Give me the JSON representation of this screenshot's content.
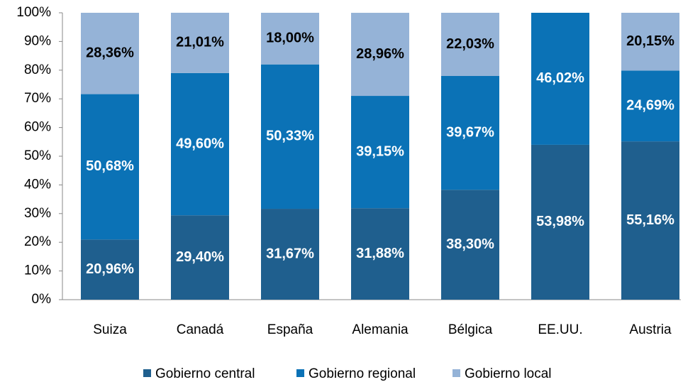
{
  "chart_data": {
    "type": "stacked_bar",
    "categories": [
      "Suiza",
      "Canadá",
      "España",
      "Alemania",
      "Bélgica",
      "EE.UU.",
      "Austria"
    ],
    "series": [
      {
        "name": "Gobierno central",
        "color": "#1f5f8e",
        "label_color": "#ffffff",
        "values": [
          20.96,
          29.4,
          31.67,
          31.88,
          38.3,
          53.98,
          55.16
        ],
        "value_labels": [
          "20,96%",
          "29,40%",
          "31,67%",
          "31,88%",
          "38,30%",
          "53,98%",
          "55,16%"
        ]
      },
      {
        "name": "Gobierno regional",
        "color": "#0b72b6",
        "label_color": "#ffffff",
        "values": [
          50.68,
          49.6,
          50.33,
          39.15,
          39.67,
          46.02,
          24.69
        ],
        "value_labels": [
          "50,68%",
          "49,60%",
          "50,33%",
          "39,15%",
          "39,67%",
          "46,02%",
          "24,69%"
        ]
      },
      {
        "name": "Gobierno local",
        "color": "#95b3d7",
        "label_color": "#000000",
        "values": [
          28.36,
          21.01,
          18.0,
          28.96,
          22.03,
          null,
          20.15
        ],
        "value_labels": [
          "28,36%",
          "21,01%",
          "18,00%",
          "28,96%",
          "22,03%",
          null,
          "20,15%"
        ]
      }
    ],
    "ylim": [
      0,
      100
    ],
    "yticks": [
      {
        "value": 0,
        "label": "0%"
      },
      {
        "value": 10,
        "label": "10%"
      },
      {
        "value": 20,
        "label": "20%"
      },
      {
        "value": 30,
        "label": "30%"
      },
      {
        "value": 40,
        "label": "40%"
      },
      {
        "value": 50,
        "label": "50%"
      },
      {
        "value": 60,
        "label": "60%"
      },
      {
        "value": 70,
        "label": "70%"
      },
      {
        "value": 80,
        "label": "80%"
      },
      {
        "value": 90,
        "label": "90%"
      },
      {
        "value": 100,
        "label": "100%"
      }
    ],
    "legend": "bottom"
  }
}
